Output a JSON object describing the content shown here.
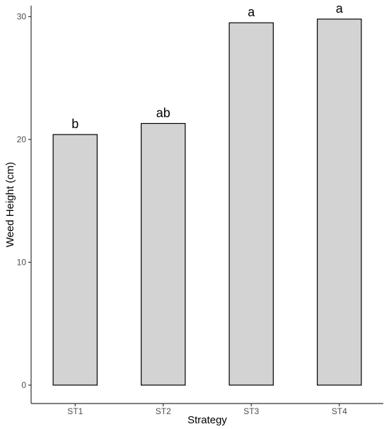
{
  "chart_data": {
    "type": "bar",
    "categories": [
      "ST1",
      "ST2",
      "ST3",
      "ST4"
    ],
    "values": [
      20.4,
      21.3,
      29.5,
      29.8
    ],
    "significance_letters": [
      "b",
      "ab",
      "a",
      "a"
    ],
    "title": "",
    "xlabel": "Strategy",
    "ylabel": "Weed Height (cm)",
    "ylim": [
      0,
      31
    ],
    "yticks": [
      0,
      10,
      20,
      30
    ],
    "grid": false,
    "bar_fill": "#d3d3d3",
    "bar_stroke": "#000000",
    "axis_color": "#333333"
  }
}
